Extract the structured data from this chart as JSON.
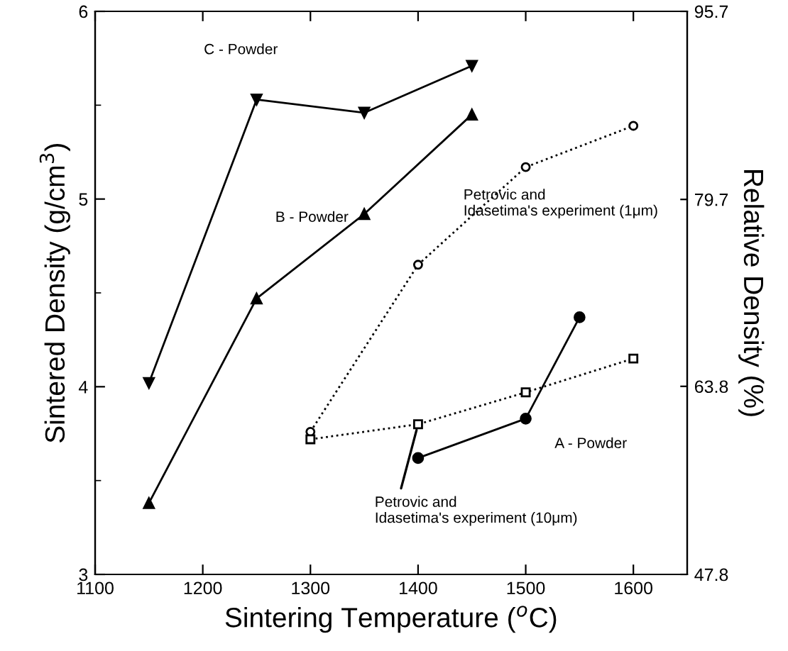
{
  "chart_data": {
    "type": "line",
    "xlabel": "Sintering Temperature ($^{o}$C)",
    "ylabel": "Sintered Density (g/cm$^{3}$)",
    "y2label": "Relative Density (%)",
    "xlim": [
      1100,
      1650
    ],
    "xticks": [
      1100,
      1200,
      1300,
      1400,
      1500,
      1600
    ],
    "ylim": [
      3,
      6
    ],
    "yticks": [
      3,
      4,
      5,
      6
    ],
    "y2lim": [
      47.8,
      95.7
    ],
    "y2ticks": [
      47.8,
      63.8,
      79.7,
      95.7
    ],
    "grid": false,
    "series": [
      {
        "name": "C - Powder",
        "color": "#000000",
        "marker": "triangle_down",
        "line_style": "solid",
        "x": [
          1150,
          1250,
          1350,
          1450
        ],
        "values": [
          4.02,
          5.53,
          5.46,
          5.71
        ]
      },
      {
        "name": "B - Powder",
        "color": "#000000",
        "marker": "triangle",
        "line_style": "solid",
        "x": [
          1150,
          1250,
          1350,
          1450
        ],
        "values": [
          3.38,
          4.47,
          4.92,
          5.45
        ]
      },
      {
        "name": "Petrovic and\nIdasetima's experiment (1μm)",
        "color": "#000000",
        "marker": "circle_open",
        "line_style": "dotted",
        "x": [
          1300,
          1400,
          1500,
          1600
        ],
        "values": [
          3.76,
          4.65,
          5.17,
          5.39
        ]
      },
      {
        "name": "Petrovic and\nIdasetima's experiment (10μm)",
        "color": "#000000",
        "marker": "square_open",
        "line_style": "dotted",
        "x": [
          1300,
          1400,
          1500,
          1600
        ],
        "values": [
          3.72,
          3.8,
          3.97,
          4.15
        ]
      },
      {
        "name": "A - Powder",
        "color": "#000000",
        "marker": "circle",
        "line_style": "solid",
        "x": [
          1400,
          1500,
          1550
        ],
        "values": [
          3.62,
          3.83,
          4.37
        ]
      }
    ]
  }
}
